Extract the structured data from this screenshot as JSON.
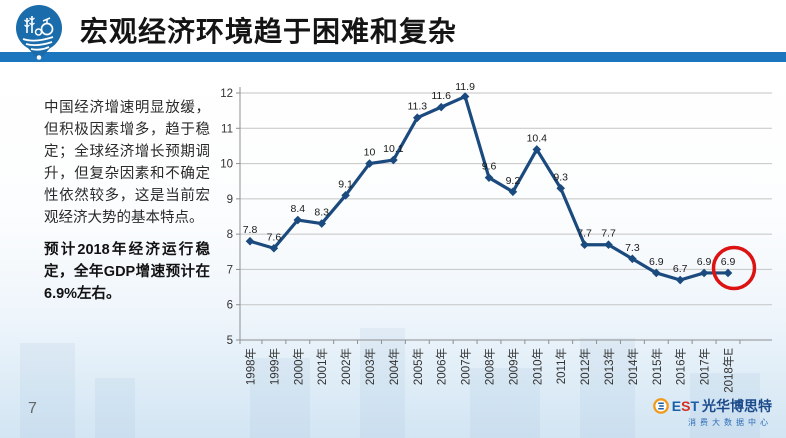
{
  "header": {
    "title": "宏观经济环境趋于困难和复杂"
  },
  "intro": {
    "para1": "中国经济增速明显放缓，但积极因素增多，趋于稳定；全球经济增长预期调升，但复杂因素和不确定性依然较多，这是当前宏观经济大势的基本特点。",
    "para2": "预计2018年经济运行稳定，全年GDP增速预计在6.9%左右。"
  },
  "chart_data": {
    "type": "line",
    "title": "",
    "xlabel": "",
    "ylabel": "",
    "categories": [
      "1998年",
      "1999年",
      "2000年",
      "2001年",
      "2002年",
      "2003年",
      "2004年",
      "2005年",
      "2006年",
      "2007年",
      "2008年",
      "2009年",
      "2010年",
      "2011年",
      "2012年",
      "2013年",
      "2014年",
      "2015年",
      "2016年",
      "2017年",
      "2018年E"
    ],
    "values": [
      7.8,
      7.6,
      8.4,
      8.3,
      9.1,
      10,
      10.1,
      11.3,
      11.6,
      11.9,
      9.6,
      9.2,
      10.4,
      9.3,
      7.7,
      7.7,
      7.3,
      6.9,
      6.7,
      6.9,
      6.9
    ],
    "point_labels": [
      "7.8",
      "7.6",
      "8.4",
      "8.3",
      "9.1",
      "10",
      "10.1",
      "11.3",
      "11.6",
      "11.9",
      "9.6",
      "9.2",
      "10.4",
      "9.3",
      "7.7",
      "7.7",
      "7.3",
      "6.9",
      "6.7",
      "6.9",
      "6.9"
    ],
    "ylim": [
      5,
      12
    ],
    "yticks": [
      5,
      6,
      7,
      8,
      9,
      10,
      11,
      12
    ],
    "grid": true,
    "legend_position": "none",
    "line_color": "#1b4a7e",
    "marker": "diamond",
    "annotation": {
      "shape": "circle",
      "target_index": 20,
      "color": "#dd1313"
    }
  },
  "footer": {
    "page_number": "7",
    "brand_e": "E",
    "brand_s": "S",
    "brand_t": "T",
    "brand_cn": "光华博思特",
    "brand_sub": "消费大数据中心"
  },
  "colors": {
    "header_bar": "#1b76bd",
    "logo_blue": "#1b6cab",
    "grid_line": "#c4c4c4",
    "axis_line": "#8f8f8f"
  }
}
